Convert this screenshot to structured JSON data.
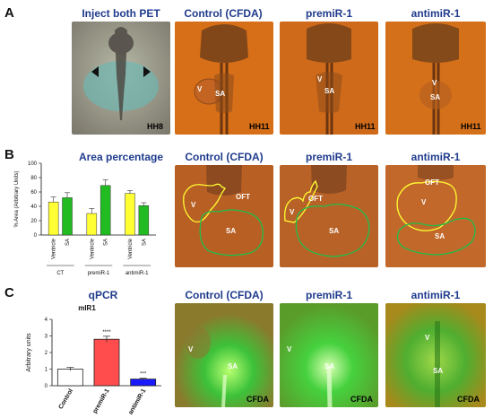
{
  "panels": {
    "A": {
      "letter": "A",
      "titles": [
        "Inject both PET",
        "Control (CFDA)",
        "premiR-1",
        "antimiR-1"
      ],
      "stages": [
        "HH8",
        "HH11",
        "HH11",
        "HH11"
      ],
      "labels": {
        "v": "V",
        "sa": "SA"
      }
    },
    "B": {
      "letter": "B",
      "titles": [
        "Area percentage",
        "Control (CFDA)",
        "premiR-1",
        "antimiR-1"
      ],
      "labels": {
        "oft": "OFT",
        "v": "V",
        "sa": "SA"
      }
    },
    "C": {
      "letter": "C",
      "titles": [
        "qPCR",
        "Control (CFDA)",
        "premiR-1",
        "antimiR-1"
      ],
      "stages": [
        "CFDA",
        "CFDA",
        "CFDA"
      ],
      "labels": {
        "v": "V",
        "sa": "SA"
      }
    }
  },
  "chart_data": [
    {
      "type": "bar",
      "ylabel": "% Area (Arbitrary Units)",
      "ylim": [
        0,
        100
      ],
      "yticks": [
        "0",
        "20",
        "40",
        "60",
        "80",
        "100"
      ],
      "categories": [
        "Ventricle",
        "SA",
        "Ventricle",
        "SA",
        "Ventricle",
        "SA"
      ],
      "groups": [
        "CT",
        "premiR-1",
        "antimiR-1"
      ],
      "values": [
        46,
        52,
        30,
        69,
        58,
        41
      ],
      "errors": [
        7,
        7,
        7,
        8,
        4,
        4
      ],
      "colors": [
        "#ffff33",
        "#22bb22",
        "#ffff33",
        "#22bb22",
        "#ffff33",
        "#22bb22"
      ]
    },
    {
      "type": "bar",
      "title": "mIR1",
      "ylabel": "Arbitrary units",
      "ylim": [
        0,
        4
      ],
      "yticks": [
        "0",
        "1",
        "2",
        "3",
        "4"
      ],
      "categories": [
        "Control",
        "premiR-1",
        "antimiR-1"
      ],
      "values": [
        1.0,
        2.8,
        0.4
      ],
      "errors": [
        0.1,
        0.18,
        0.05
      ],
      "significance": [
        "",
        "****",
        "***"
      ],
      "colors": [
        "#ffffff",
        "#ff4d4d",
        "#1a1aff"
      ]
    }
  ]
}
